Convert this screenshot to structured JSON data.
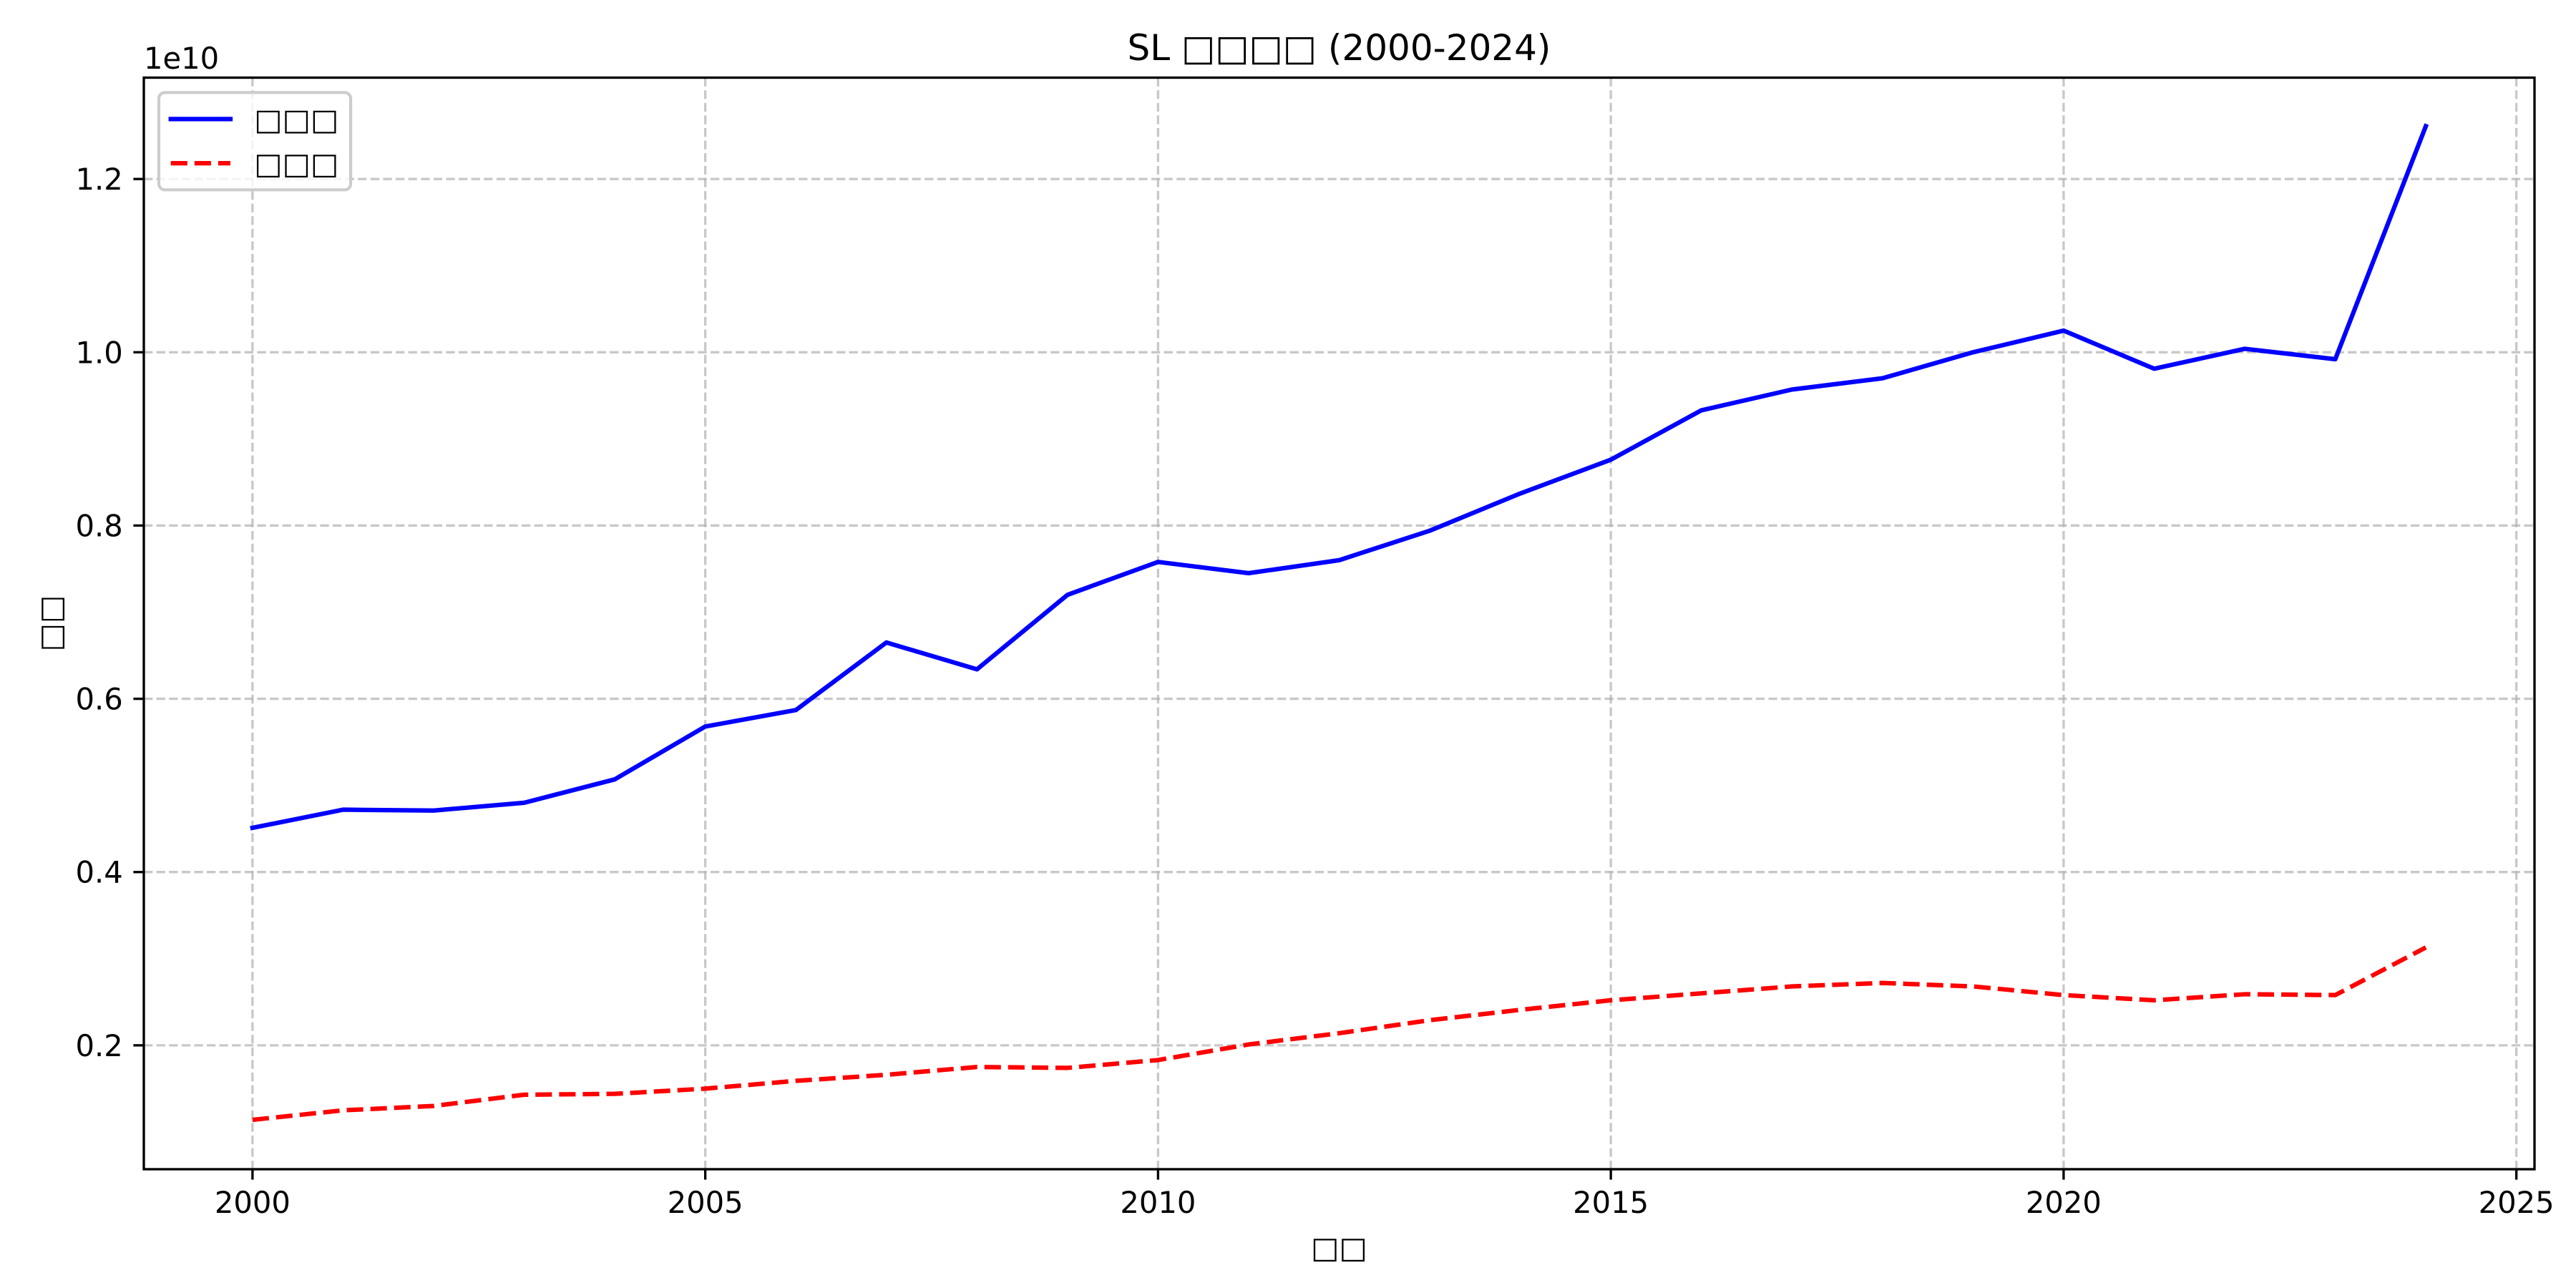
{
  "chart_data": {
    "type": "line",
    "title": "SL □□□□ (2000-2024)",
    "xlabel": "□□",
    "ylabel": "□□",
    "y_offset_label": "1e10",
    "x": [
      2000,
      2001,
      2002,
      2003,
      2004,
      2005,
      2006,
      2007,
      2008,
      2009,
      2010,
      2011,
      2012,
      2013,
      2014,
      2015,
      2016,
      2017,
      2018,
      2019,
      2020,
      2021,
      2022,
      2023,
      2024
    ],
    "series": [
      {
        "name": "□□□",
        "color": "#0000ff",
        "linestyle": "solid",
        "values": [
          4510000000.0,
          4720000000.0,
          4710000000.0,
          4800000000.0,
          5070000000.0,
          5680000000.0,
          5870000000.0,
          6650000000.0,
          6340000000.0,
          7200000000.0,
          7580000000.0,
          7450000000.0,
          7600000000.0,
          7940000000.0,
          8370000000.0,
          8760000000.0,
          9330000000.0,
          9570000000.0,
          9700000000.0,
          10000000000.0,
          10250000000.0,
          9810000000.0,
          10040000000.0,
          9920000000.0,
          12610000000.0
        ]
      },
      {
        "name": "□□□",
        "color": "#ff0000",
        "linestyle": "dashed",
        "values": [
          1140000000.0,
          1250000000.0,
          1300000000.0,
          1430000000.0,
          1440000000.0,
          1500000000.0,
          1590000000.0,
          1660000000.0,
          1750000000.0,
          1740000000.0,
          1830000000.0,
          2010000000.0,
          2140000000.0,
          2290000000.0,
          2410000000.0,
          2520000000.0,
          2600000000.0,
          2680000000.0,
          2720000000.0,
          2680000000.0,
          2580000000.0,
          2520000000.0,
          2590000000.0,
          2580000000.0,
          3130000000.0
        ]
      }
    ],
    "xlim": [
      1998.8,
      2025.2
    ],
    "ylim": [
      570000000.0,
      13170000000.0
    ],
    "x_ticks": [
      2000,
      2005,
      2010,
      2015,
      2020,
      2025
    ],
    "x_tick_labels": [
      "2000",
      "2005",
      "2010",
      "2015",
      "2020",
      "2025"
    ],
    "y_ticks": [
      2000000000.0,
      4000000000.0,
      6000000000.0,
      8000000000.0,
      10000000000.0,
      12000000000.0
    ],
    "y_tick_labels": [
      "0.2",
      "0.4",
      "0.6",
      "0.8",
      "1.0",
      "1.2"
    ],
    "grid": true,
    "legend_position": "top-left"
  }
}
